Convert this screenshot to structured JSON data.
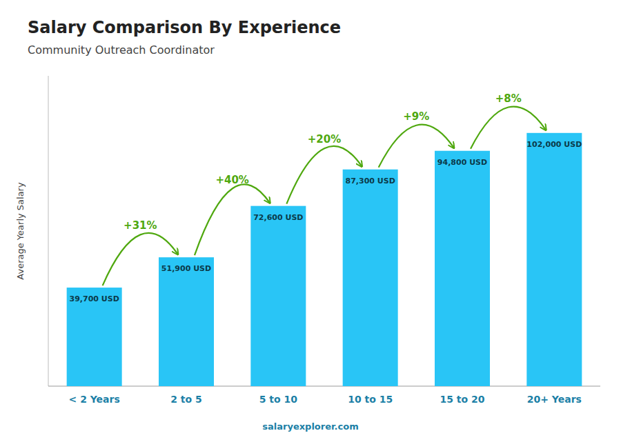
{
  "chart_data": {
    "type": "bar",
    "title": "Salary Comparison By Experience",
    "subtitle": "Community Outreach Coordinator",
    "ylabel": "Average Yearly Salary",
    "categories": [
      "< 2 Years",
      "2 to 5",
      "5 to 10",
      "10 to 15",
      "15 to 20",
      "20+ Years"
    ],
    "values": [
      39700,
      51900,
      72600,
      87300,
      94800,
      102000
    ],
    "value_labels": [
      "39,700 USD",
      "51,900 USD",
      "72,600 USD",
      "87,300 USD",
      "94,800 USD",
      "102,000 USD"
    ],
    "data_labels": true,
    "color": "#29C5F6",
    "ylim": [
      0,
      125000
    ],
    "tick_labels": "x",
    "annotations": [
      "+31%",
      "+40%",
      "+20%",
      "+9%",
      "+8%"
    ],
    "watermark": "salaryexplorer.com"
  }
}
